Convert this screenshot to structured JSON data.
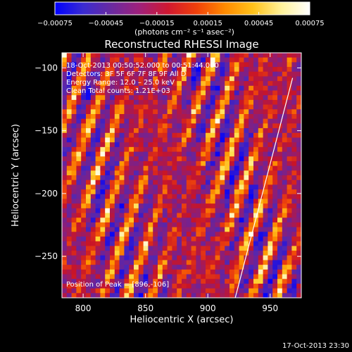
{
  "chart_data": {
    "type": "heatmap",
    "title": "Reconstructed RHESSI Image",
    "xlabel": "Heliocentric X (arcsec)",
    "ylabel": "Heliocentric Y (arcsec)",
    "xlim": [
      783,
      975
    ],
    "ylim": [
      -283,
      -88
    ],
    "x_ticks": [
      800,
      850,
      900,
      950
    ],
    "x_tick_labels": [
      "800",
      "850",
      "900",
      "950"
    ],
    "y_ticks": [
      -100,
      -150,
      -200,
      -250
    ],
    "y_tick_labels": [
      "−100",
      "−150",
      "−200",
      "−250"
    ],
    "colorbar": {
      "range": [
        -0.00075,
        0.00075
      ],
      "ticks": [
        -0.00075,
        -0.00045,
        -0.00015,
        0.00015,
        0.00045,
        0.00075
      ],
      "tick_labels": [
        "−0.00075",
        "−0.00045",
        "−0.00015",
        "0.00015",
        "0.00045",
        "0.00075"
      ],
      "units_label": "(photons cm⁻² s⁻¹ asec⁻²)",
      "colors": [
        "#0000ff",
        "#3a2bd0",
        "#6a2aa0",
        "#a0207a",
        "#d01830",
        "#f0400a",
        "#ff8a00",
        "#ffc21a",
        "#fff29a",
        "#ffffff"
      ]
    },
    "grid": false,
    "limb_line": {
      "x": [
        922,
        968
      ],
      "y": [
        -283,
        -108
      ]
    },
    "annotations": [
      "18-Oct-2013 00:50:52.000 to 00:51:44.000",
      "Detectors: 3F 5F 6F 7F 8F 9F  All D",
      "Energy Range: 12.0 – 25.0 keV",
      "Clean     Total counts: 1.21E+03",
      "Position of Peak = [896,-106]"
    ],
    "peak_position": [
      896,
      -106
    ]
  },
  "footer": {
    "timestamp": "17-Oct-2013 23:30"
  }
}
